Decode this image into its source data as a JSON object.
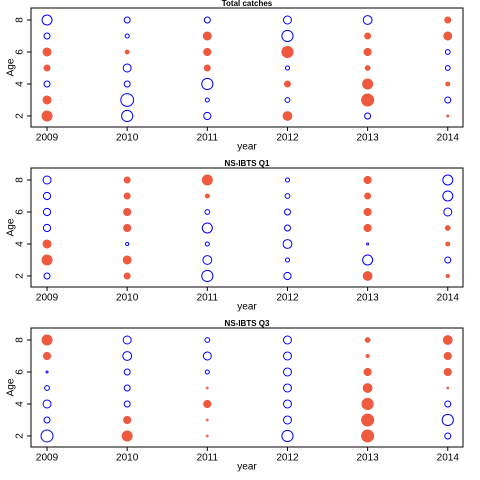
{
  "chart_data": [
    {
      "type": "scatter",
      "title": "Total catches",
      "x_label": "year",
      "y_label": "Age",
      "x": [
        2009,
        2010,
        2011,
        2012,
        2013,
        2014
      ],
      "y": [
        2,
        3,
        4,
        5,
        6,
        7,
        8
      ],
      "values": [
        [
          2.5,
          2,
          -1.5,
          1.5,
          2,
          -1.5,
          -2.5
        ],
        [
          -2.8,
          -3.2,
          -1.5,
          -2,
          1,
          -1,
          -1.5
        ],
        [
          -1.8,
          -1,
          -2.8,
          1.5,
          1.8,
          2,
          -1.5
        ],
        [
          2.2,
          -1.2,
          1.5,
          -1,
          2.8,
          -2.8,
          -2
        ],
        [
          -1.5,
          3,
          2.5,
          1.2,
          1.8,
          1.5,
          -2.2
        ],
        [
          0.5,
          -1.5,
          1,
          -1.2,
          -1.2,
          2,
          1.5
        ]
      ],
      "positive_color": "#ee5a40",
      "negative_color": "#0000ff",
      "xlim": [
        2008.8,
        2014.19
      ],
      "ylim": [
        1.31,
        8.75
      ],
      "xticks": [
        2009,
        2010,
        2011,
        2012,
        2013,
        2014
      ],
      "yticks": [
        2,
        4,
        6,
        8
      ]
    },
    {
      "type": "scatter",
      "title": "NS-IBTS Q1",
      "x_label": "year",
      "y_label": "Age",
      "x": [
        2009,
        2010,
        2011,
        2012,
        2013,
        2014
      ],
      "y": [
        2,
        3,
        4,
        5,
        6,
        7,
        8
      ],
      "values": [
        [
          -1.5,
          2.5,
          2,
          -1.8,
          -1.8,
          -1.8,
          -2
        ],
        [
          1.5,
          2,
          -0.8,
          1.8,
          1.8,
          1.5,
          1.5
        ],
        [
          -2.8,
          -2.2,
          -1,
          -2.5,
          -1.2,
          1,
          2.5
        ],
        [
          -1.8,
          -1,
          -2.2,
          -1.5,
          -1.5,
          -1.2,
          -1
        ],
        [
          2.2,
          -2.5,
          -0.5,
          1.8,
          1.8,
          1.5,
          1.8
        ],
        [
          0.8,
          -1.5,
          1,
          1.2,
          -2,
          -2.5,
          -2.5
        ]
      ],
      "positive_color": "#ee5a40",
      "negative_color": "#0000ff",
      "xlim": [
        2008.8,
        2014.19
      ],
      "ylim": [
        1.31,
        8.75
      ],
      "xticks": [
        2009,
        2010,
        2011,
        2012,
        2013,
        2014
      ],
      "yticks": [
        2,
        4,
        6,
        8
      ]
    },
    {
      "type": "scatter",
      "title": "NS-IBTS Q3",
      "x_label": "year",
      "y_label": "Age",
      "x": [
        2009,
        2010,
        2011,
        2012,
        2013,
        2014
      ],
      "y": [
        2,
        3,
        4,
        5,
        6,
        7,
        8
      ],
      "values": [
        [
          -3,
          -1.5,
          -2,
          -1.2,
          -0.5,
          1.8,
          2.5
        ],
        [
          2.5,
          1.8,
          -1.5,
          -1.5,
          -1.5,
          -2.2,
          -2
        ],
        [
          0.4,
          0.4,
          1.8,
          0.4,
          -1,
          -2,
          -1.2
        ],
        [
          -2.8,
          -2,
          -2,
          -2,
          -2,
          -2,
          -2
        ],
        [
          3,
          3,
          2.8,
          2.2,
          1.8,
          0.8,
          1.2
        ],
        [
          -1.5,
          -2.8,
          -1.5,
          0.4,
          1.8,
          1.8,
          2.2
        ]
      ],
      "positive_color": "#ee5a40",
      "negative_color": "#0000ff",
      "xlim": [
        2008.8,
        2014.19
      ],
      "ylim": [
        1.31,
        8.75
      ],
      "xticks": [
        2009,
        2010,
        2011,
        2012,
        2013,
        2014
      ],
      "yticks": [
        2,
        4,
        6,
        8
      ]
    }
  ]
}
